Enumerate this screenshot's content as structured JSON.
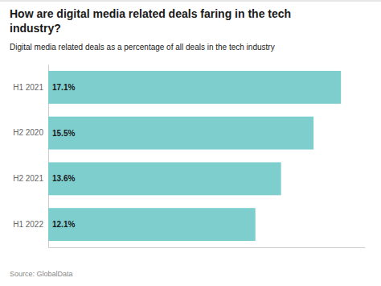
{
  "chart_data": {
    "type": "bar",
    "orientation": "horizontal",
    "title": "How are digital media related deals faring in the tech\nindustry?",
    "subtitle": "Digital media related deals as a percentage of all deals in the tech industry",
    "annotations": [
      "Source: GlobalData"
    ],
    "categories": [
      "H1 2021",
      "H2 2020",
      "H2 2021",
      "H1 2022"
    ],
    "values": [
      17.1,
      15.5,
      13.6,
      12.1
    ],
    "value_labels": [
      "17.1%",
      "15.5%",
      "13.6%",
      "12.1%"
    ],
    "color": "#7ecece",
    "xlim": [
      0,
      18.5
    ],
    "data_labels": true,
    "tick_labels": "y",
    "grid": false
  }
}
